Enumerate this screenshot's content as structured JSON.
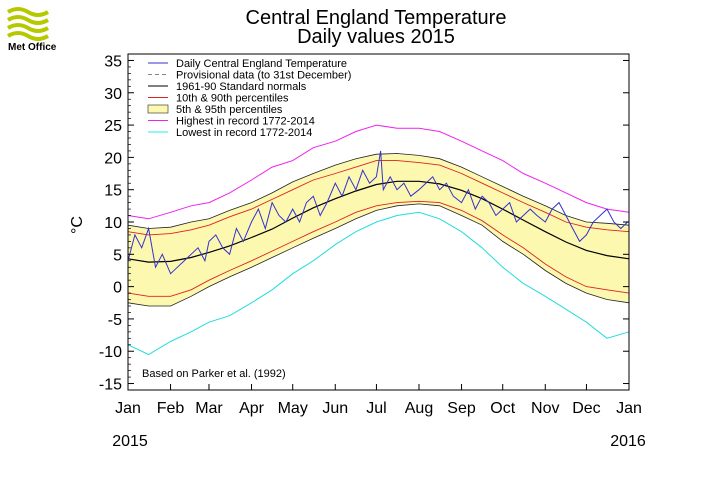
{
  "logo": {
    "text": "Met Office"
  },
  "chart_data": {
    "type": "line",
    "title": "Central England Temperature",
    "subtitle": "Daily values 2015",
    "ylabel": "°C",
    "xlabel": "",
    "ylim": [
      -16,
      36
    ],
    "yticks": [
      35,
      30,
      25,
      20,
      15,
      10,
      5,
      0,
      -5,
      -10,
      -15
    ],
    "month_labels": [
      "Jan",
      "Feb",
      "Mar",
      "Apr",
      "May",
      "Jun",
      "Jul",
      "Aug",
      "Sep",
      "Oct",
      "Nov",
      "Dec",
      "Jan"
    ],
    "month_start_days": [
      0,
      31,
      59,
      90,
      120,
      151,
      181,
      212,
      243,
      273,
      304,
      334,
      365
    ],
    "year_start_label": "2015",
    "year_end_label": "2016",
    "annotation": "Based on Parker et al. (1992)",
    "grid": false,
    "legend_position": "top-left",
    "legend": [
      {
        "key": "daily",
        "label": "Daily Central England Temperature",
        "color": "#3333cc",
        "style": "line"
      },
      {
        "key": "provisional",
        "label": "Provisional data (to 31st December)",
        "color": "#888888",
        "style": "dash"
      },
      {
        "key": "normal",
        "label": "1961-90 Standard normals",
        "color": "#000000",
        "style": "line"
      },
      {
        "key": "p10",
        "label": "10th & 90th percentiles",
        "color": "#dd2222",
        "style": "line"
      },
      {
        "key": "p5",
        "label": "5th & 95th percentiles",
        "color": "#fdf8b0",
        "style": "fill"
      },
      {
        "key": "max",
        "label": "Highest in record 1772-2014",
        "color": "#ee22ee",
        "style": "line"
      },
      {
        "key": "min",
        "label": "Lowest in record 1772-2014",
        "color": "#22eeee",
        "style": "line"
      }
    ],
    "climatology": {
      "day": [
        0,
        15,
        31,
        46,
        59,
        74,
        90,
        105,
        120,
        135,
        151,
        166,
        181,
        196,
        212,
        227,
        243,
        258,
        273,
        288,
        304,
        319,
        334,
        349,
        365
      ],
      "normal": [
        4.3,
        3.8,
        3.9,
        4.5,
        5.3,
        6.3,
        7.6,
        8.9,
        10.6,
        12.2,
        13.6,
        14.8,
        15.8,
        16.3,
        16.3,
        15.9,
        14.9,
        13.6,
        12.0,
        10.3,
        8.5,
        6.9,
        5.6,
        4.8,
        4.3
      ],
      "p10_low": [
        -1.0,
        -1.5,
        -1.5,
        -0.5,
        1.0,
        2.5,
        4.0,
        5.5,
        7.0,
        8.5,
        10.0,
        11.5,
        12.5,
        13.0,
        13.2,
        13.0,
        11.8,
        10.2,
        8.0,
        6.0,
        3.5,
        1.5,
        0.0,
        -0.5,
        -1.0
      ],
      "p10_high": [
        8.5,
        8.0,
        8.2,
        8.8,
        9.5,
        10.8,
        12.0,
        13.5,
        15.0,
        16.5,
        17.5,
        18.5,
        19.5,
        19.5,
        19.2,
        18.8,
        17.5,
        16.0,
        14.5,
        13.0,
        11.5,
        10.0,
        9.2,
        8.8,
        8.5
      ],
      "p5_low": [
        -2.5,
        -3.0,
        -3.0,
        -1.5,
        0.0,
        1.5,
        3.0,
        4.5,
        6.0,
        7.5,
        9.0,
        10.5,
        11.8,
        12.5,
        12.8,
        12.5,
        11.0,
        9.5,
        7.0,
        5.0,
        2.5,
        0.5,
        -1.0,
        -2.0,
        -2.5
      ],
      "p5_high": [
        9.5,
        9.0,
        9.2,
        10.0,
        10.5,
        11.8,
        13.0,
        14.5,
        16.2,
        17.5,
        18.8,
        19.8,
        20.5,
        20.6,
        20.3,
        19.8,
        18.5,
        17.0,
        15.5,
        14.0,
        12.5,
        11.0,
        10.0,
        9.8,
        9.5
      ],
      "record_max": [
        11.0,
        10.5,
        11.5,
        12.5,
        13.0,
        14.5,
        16.5,
        18.5,
        19.5,
        21.5,
        22.5,
        24.0,
        25.0,
        24.5,
        24.5,
        24.0,
        22.5,
        21.0,
        19.5,
        17.5,
        16.0,
        14.5,
        13.0,
        12.0,
        11.5
      ],
      "record_min": [
        -9.0,
        -10.5,
        -8.5,
        -7.0,
        -5.5,
        -4.5,
        -2.5,
        -0.5,
        2.0,
        4.0,
        6.5,
        8.5,
        10.0,
        11.0,
        11.5,
        10.5,
        8.5,
        6.0,
        3.0,
        0.5,
        -1.5,
        -3.5,
        -5.5,
        -8.0,
        -7.0
      ]
    },
    "daily_2015": {
      "day": [
        0,
        5,
        10,
        15,
        20,
        25,
        31,
        36,
        41,
        46,
        51,
        56,
        59,
        64,
        69,
        74,
        79,
        84,
        90,
        95,
        100,
        105,
        110,
        115,
        120,
        125,
        130,
        135,
        140,
        145,
        151,
        156,
        161,
        166,
        171,
        176,
        181,
        184,
        186,
        191,
        196,
        201,
        206,
        212,
        217,
        222,
        227,
        232,
        237,
        243,
        248,
        253,
        258,
        263,
        268,
        273,
        278,
        283,
        288,
        293,
        298,
        304,
        309,
        314,
        319,
        324,
        329,
        334,
        339,
        344,
        349,
        354,
        359,
        364
      ],
      "values": [
        4,
        8,
        6,
        9,
        3,
        5,
        2,
        3,
        4,
        5,
        6,
        4,
        7,
        8,
        6,
        5,
        9,
        7,
        10,
        12,
        9,
        13,
        11,
        10,
        12,
        10,
        13,
        14,
        11,
        13,
        16,
        14,
        17,
        15,
        18,
        16,
        17,
        21,
        15,
        17,
        15,
        16,
        14,
        15,
        16,
        17,
        15,
        16,
        14,
        13,
        15,
        12,
        14,
        13,
        11,
        12,
        13,
        10,
        11,
        12,
        11,
        10,
        12,
        13,
        11,
        9,
        7,
        8,
        10,
        11,
        12,
        10,
        9,
        10
      ]
    }
  }
}
